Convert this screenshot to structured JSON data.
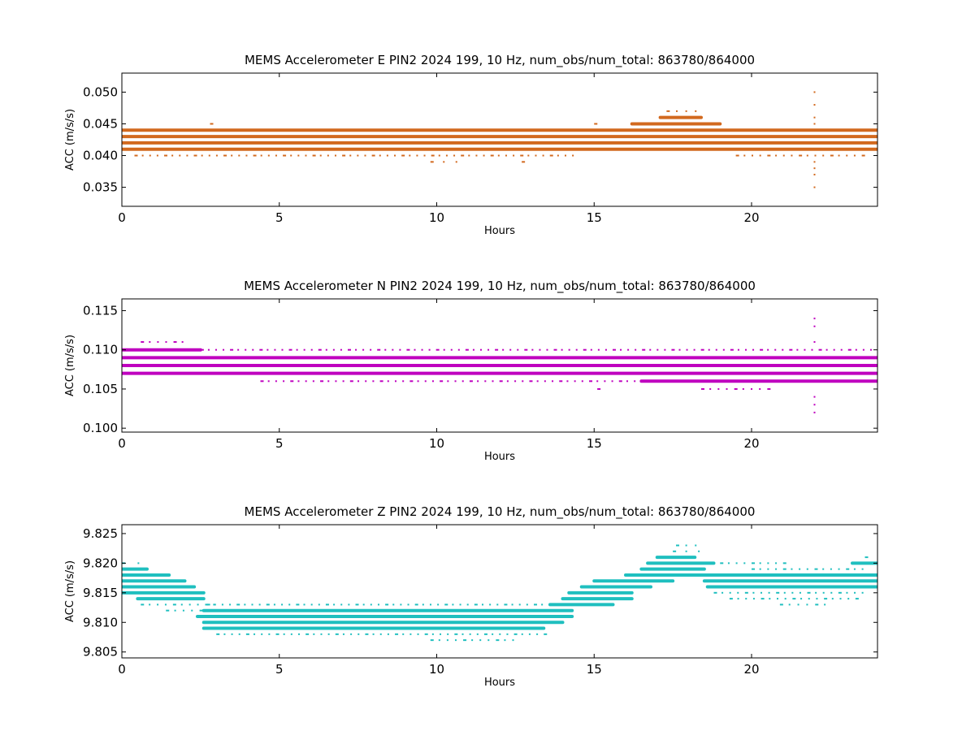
{
  "chart_data": [
    {
      "type": "scatter",
      "title": "MEMS Accelerometer E PIN2 2024 199, 10 Hz, num_obs/num_total: 863780/864000",
      "xlabel": "Hours",
      "ylabel": "ACC (m/s/s)",
      "xlim": [
        0,
        24
      ],
      "ylim": [
        0.032,
        0.053
      ],
      "xticks": [
        0,
        5,
        10,
        15,
        20
      ],
      "yticks": [
        0.035,
        0.04,
        0.045,
        0.05
      ],
      "ytick_labels": [
        "0.035",
        "0.040",
        "0.045",
        "0.050"
      ],
      "color": "#d2691e",
      "bands": [
        {
          "y": 0.044,
          "x": [
            0.0,
            24.0
          ],
          "style": "dense"
        },
        {
          "y": 0.043,
          "x": [
            0.0,
            24.0
          ],
          "style": "dense"
        },
        {
          "y": 0.042,
          "x": [
            0.0,
            24.0
          ],
          "style": "dense"
        },
        {
          "y": 0.041,
          "x": [
            0.0,
            24.0
          ],
          "style": "dense"
        },
        {
          "y": 0.045,
          "x": [
            16.2,
            19.0
          ],
          "style": "dense"
        },
        {
          "y": 0.046,
          "x": [
            17.1,
            18.4
          ],
          "style": "dense"
        },
        {
          "y": 0.047,
          "x": [
            17.3,
            18.2
          ],
          "style": "sparse"
        },
        {
          "y": 0.045,
          "x": [
            2.8,
            2.8
          ],
          "style": "sparse"
        },
        {
          "y": 0.045,
          "x": [
            15.0,
            15.0
          ],
          "style": "sparse"
        },
        {
          "y": 0.04,
          "x": [
            0.4,
            14.3
          ],
          "style": "sparse"
        },
        {
          "y": 0.04,
          "x": [
            19.5,
            23.5
          ],
          "style": "sparse"
        },
        {
          "y": 0.039,
          "x": [
            9.8,
            10.6
          ],
          "style": "sparse"
        },
        {
          "y": 0.039,
          "x": [
            12.7,
            12.7
          ],
          "style": "sparse"
        }
      ],
      "spikes": [
        {
          "x": 22.0,
          "values": [
            0.035,
            0.037,
            0.038,
            0.039,
            0.045,
            0.046,
            0.048,
            0.05
          ]
        }
      ]
    },
    {
      "type": "scatter",
      "title": "MEMS Accelerometer N PIN2 2024 199, 10 Hz, num_obs/num_total: 863780/864000",
      "xlabel": "Hours",
      "ylabel": "ACC (m/s/s)",
      "xlim": [
        0,
        24
      ],
      "ylim": [
        0.0995,
        0.1165
      ],
      "xticks": [
        0,
        5,
        10,
        15,
        20
      ],
      "yticks": [
        0.1,
        0.105,
        0.11,
        0.115
      ],
      "ytick_labels": [
        "0.100",
        "0.105",
        "0.110",
        "0.115"
      ],
      "color": "#bf00bf",
      "bands": [
        {
          "y": 0.11,
          "x": [
            0.0,
            2.5
          ],
          "style": "dense"
        },
        {
          "y": 0.11,
          "x": [
            2.5,
            24.0
          ],
          "style": "sparse"
        },
        {
          "y": 0.109,
          "x": [
            0.0,
            24.0
          ],
          "style": "dense"
        },
        {
          "y": 0.108,
          "x": [
            0.0,
            24.0
          ],
          "style": "dense"
        },
        {
          "y": 0.107,
          "x": [
            0.0,
            24.0
          ],
          "style": "dense"
        },
        {
          "y": 0.106,
          "x": [
            16.5,
            24.0
          ],
          "style": "dense"
        },
        {
          "y": 0.106,
          "x": [
            4.4,
            16.5
          ],
          "style": "sparse"
        },
        {
          "y": 0.111,
          "x": [
            0.6,
            1.9
          ],
          "style": "sparse"
        },
        {
          "y": 0.105,
          "x": [
            15.1,
            15.1
          ],
          "style": "sparse"
        },
        {
          "y": 0.105,
          "x": [
            18.4,
            20.5
          ],
          "style": "sparse"
        }
      ],
      "spikes": [
        {
          "x": 22.0,
          "values": [
            0.102,
            0.103,
            0.104,
            0.111,
            0.113,
            0.114
          ]
        }
      ]
    },
    {
      "type": "scatter",
      "title": "MEMS Accelerometer Z PIN2 2024 199, 10 Hz, num_obs/num_total: 863780/864000",
      "xlabel": "Hours",
      "ylabel": "ACC (m/s/s)",
      "xlim": [
        0,
        24
      ],
      "ylim": [
        9.804,
        9.8265
      ],
      "xticks": [
        0,
        5,
        10,
        15,
        20
      ],
      "yticks": [
        9.805,
        9.81,
        9.815,
        9.82,
        9.825
      ],
      "ytick_labels": [
        "9.805",
        "9.810",
        "9.815",
        "9.820",
        "9.825"
      ],
      "color": "#1fbfbf",
      "bands": [
        {
          "y": 9.82,
          "x": [
            0.0,
            0.5
          ],
          "style": "sparse"
        },
        {
          "y": 9.819,
          "x": [
            0.0,
            0.8
          ],
          "style": "dense"
        },
        {
          "y": 9.818,
          "x": [
            0.0,
            1.5
          ],
          "style": "dense"
        },
        {
          "y": 9.817,
          "x": [
            0.0,
            2.0
          ],
          "style": "dense"
        },
        {
          "y": 9.816,
          "x": [
            0.0,
            2.3
          ],
          "style": "dense"
        },
        {
          "y": 9.815,
          "x": [
            0.0,
            2.6
          ],
          "style": "dense"
        },
        {
          "y": 9.814,
          "x": [
            0.5,
            2.6
          ],
          "style": "dense"
        },
        {
          "y": 9.813,
          "x": [
            0.6,
            2.9
          ],
          "style": "sparse"
        },
        {
          "y": 9.812,
          "x": [
            1.4,
            3.0
          ],
          "style": "sparse"
        },
        {
          "y": 9.813,
          "x": [
            2.7,
            14.5
          ],
          "style": "sparse"
        },
        {
          "y": 9.812,
          "x": [
            2.6,
            14.3
          ],
          "style": "dense"
        },
        {
          "y": 9.811,
          "x": [
            2.4,
            14.3
          ],
          "style": "dense"
        },
        {
          "y": 9.81,
          "x": [
            2.6,
            14.0
          ],
          "style": "dense"
        },
        {
          "y": 9.809,
          "x": [
            2.6,
            13.4
          ],
          "style": "dense"
        },
        {
          "y": 9.808,
          "x": [
            3.0,
            13.4
          ],
          "style": "sparse"
        },
        {
          "y": 9.807,
          "x": [
            9.8,
            12.4
          ],
          "style": "sparse"
        },
        {
          "y": 9.813,
          "x": [
            13.6,
            15.6
          ],
          "style": "dense"
        },
        {
          "y": 9.814,
          "x": [
            14.0,
            16.2
          ],
          "style": "dense"
        },
        {
          "y": 9.815,
          "x": [
            14.2,
            16.2
          ],
          "style": "dense"
        },
        {
          "y": 9.816,
          "x": [
            14.6,
            16.8
          ],
          "style": "dense"
        },
        {
          "y": 9.817,
          "x": [
            15.0,
            17.5
          ],
          "style": "dense"
        },
        {
          "y": 9.818,
          "x": [
            16.0,
            24.0
          ],
          "style": "dense"
        },
        {
          "y": 9.819,
          "x": [
            16.5,
            18.5
          ],
          "style": "dense"
        },
        {
          "y": 9.82,
          "x": [
            16.7,
            18.8
          ],
          "style": "dense"
        },
        {
          "y": 9.821,
          "x": [
            17.0,
            18.2
          ],
          "style": "dense"
        },
        {
          "y": 9.822,
          "x": [
            17.5,
            18.3
          ],
          "style": "sparse"
        },
        {
          "y": 9.823,
          "x": [
            17.6,
            18.2
          ],
          "style": "sparse"
        },
        {
          "y": 9.817,
          "x": [
            18.5,
            24.0
          ],
          "style": "dense"
        },
        {
          "y": 9.816,
          "x": [
            18.6,
            24.0
          ],
          "style": "dense"
        },
        {
          "y": 9.815,
          "x": [
            18.8,
            23.5
          ],
          "style": "sparse"
        },
        {
          "y": 9.814,
          "x": [
            19.3,
            23.3
          ],
          "style": "sparse"
        },
        {
          "y": 9.813,
          "x": [
            20.9,
            22.3
          ],
          "style": "sparse"
        },
        {
          "y": 9.819,
          "x": [
            20.0,
            23.5
          ],
          "style": "sparse"
        },
        {
          "y": 9.82,
          "x": [
            19.0,
            21.0
          ],
          "style": "sparse"
        },
        {
          "y": 9.82,
          "x": [
            23.2,
            24.0
          ],
          "style": "dense"
        },
        {
          "y": 9.821,
          "x": [
            23.6,
            24.0
          ],
          "style": "sparse"
        }
      ],
      "spikes": []
    }
  ]
}
